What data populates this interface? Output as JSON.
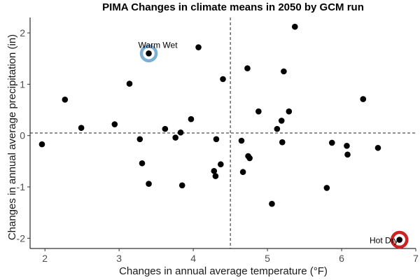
{
  "chart_data": {
    "type": "scatter",
    "title": "PIMA Changes in climate means in 2050 by GCM run",
    "xlabel": "Changes in annual average temperature (°F)",
    "ylabel": "Changes in annual average precipitation (in)",
    "xlim": [
      1.8,
      7.0
    ],
    "ylim": [
      -2.2,
      2.3
    ],
    "xticks": [
      2,
      3,
      4,
      5,
      6,
      7
    ],
    "yticks": [
      -2,
      -1,
      0,
      1,
      2
    ],
    "grid": false,
    "reference_lines": {
      "vertical_x": 4.5,
      "horizontal_y": 0.05,
      "style": "dashed"
    },
    "point_color": "#000000",
    "points": [
      {
        "x": 1.96,
        "y": -0.17
      },
      {
        "x": 2.27,
        "y": 0.7
      },
      {
        "x": 2.49,
        "y": 0.15
      },
      {
        "x": 2.94,
        "y": 0.22
      },
      {
        "x": 3.14,
        "y": 1.01
      },
      {
        "x": 3.28,
        "y": -0.07
      },
      {
        "x": 3.31,
        "y": -0.54
      },
      {
        "x": 3.4,
        "y": -0.94
      },
      {
        "x": 3.4,
        "y": 1.6
      },
      {
        "x": 3.62,
        "y": 0.13
      },
      {
        "x": 3.76,
        "y": -0.04
      },
      {
        "x": 3.83,
        "y": 0.06
      },
      {
        "x": 3.85,
        "y": -0.97
      },
      {
        "x": 3.97,
        "y": 0.32
      },
      {
        "x": 4.07,
        "y": 1.72
      },
      {
        "x": 4.28,
        "y": -0.69
      },
      {
        "x": 4.3,
        "y": -0.79
      },
      {
        "x": 4.31,
        "y": -0.07
      },
      {
        "x": 4.37,
        "y": -0.56
      },
      {
        "x": 4.4,
        "y": 1.1
      },
      {
        "x": 4.65,
        "y": -0.1
      },
      {
        "x": 4.67,
        "y": -0.71
      },
      {
        "x": 4.73,
        "y": 1.31
      },
      {
        "x": 4.74,
        "y": -0.4
      },
      {
        "x": 4.76,
        "y": -0.44
      },
      {
        "x": 4.88,
        "y": 0.47
      },
      {
        "x": 5.06,
        "y": -1.33
      },
      {
        "x": 5.13,
        "y": 0.13
      },
      {
        "x": 5.19,
        "y": 0.29
      },
      {
        "x": 5.2,
        "y": -0.13
      },
      {
        "x": 5.22,
        "y": 1.25
      },
      {
        "x": 5.29,
        "y": 0.47
      },
      {
        "x": 5.37,
        "y": 2.12
      },
      {
        "x": 5.8,
        "y": -1.02
      },
      {
        "x": 5.87,
        "y": -0.14
      },
      {
        "x": 6.07,
        "y": -0.2
      },
      {
        "x": 6.08,
        "y": -0.37
      },
      {
        "x": 6.29,
        "y": 0.71
      },
      {
        "x": 6.49,
        "y": -0.24
      },
      {
        "x": 6.78,
        "y": -2.03
      }
    ],
    "highlights": [
      {
        "label": "Warm Wet",
        "x": 3.4,
        "y": 1.6,
        "color": "#7bafd4"
      },
      {
        "label": "Hot Dry",
        "x": 6.78,
        "y": -2.03,
        "color": "#cc2222"
      }
    ]
  }
}
